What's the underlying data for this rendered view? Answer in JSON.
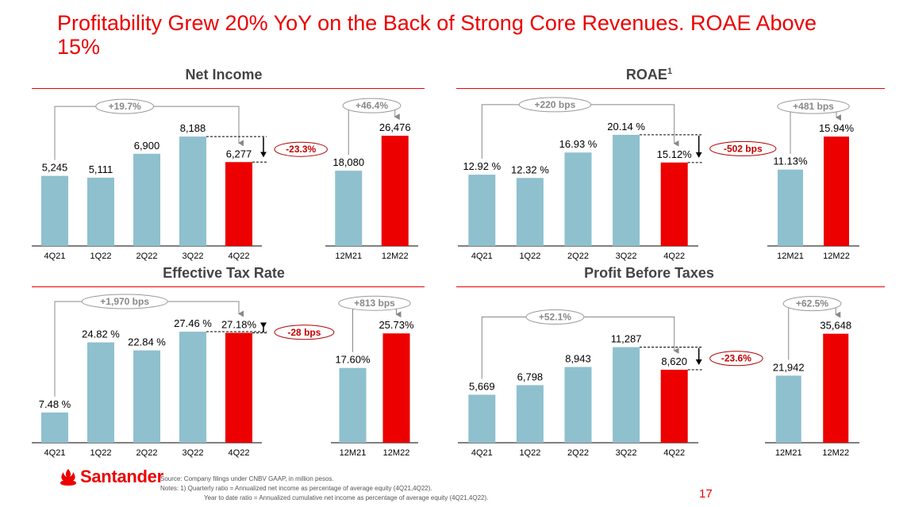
{
  "slide": {
    "title": "Profitability Grew 20% YoY on the Back of Strong Core Revenues. ROAE Above 15%",
    "page_number": "17",
    "brand": "Santander",
    "footnotes": {
      "source": "Source: Company filings under CNBV GAAP, in million pesos.",
      "note1": "Notes: 1) Quarterly ratio = Annualized net income as percentage of average equity (4Q21,4Q22).",
      "note2": "Year to date ratio = Annualized cumulative net income as percentage of average equity (4Q21,4Q22)."
    },
    "colors": {
      "accent": "#ec0000",
      "bar_prior": "#8fc0ce",
      "bar_current": "#ec0000",
      "title_gray": "#444444"
    }
  },
  "sections": [
    {
      "title": "Net Income",
      "superscript": ""
    },
    {
      "title": "ROAE",
      "superscript": "1"
    },
    {
      "title": "Effective Tax Rate",
      "superscript": ""
    },
    {
      "title": "Profit Before Taxes",
      "superscript": ""
    }
  ],
  "chart_data": [
    {
      "type": "bar",
      "title": "Net Income",
      "subtitle": "Quarterly",
      "categories": [
        "4Q21",
        "1Q22",
        "2Q22",
        "3Q22",
        "4Q22"
      ],
      "values": [
        5245,
        5111,
        6900,
        8188,
        6277
      ],
      "labels": [
        "5,245",
        "5,111",
        "6,900",
        "8,188",
        "6,277"
      ],
      "highlight_index": 4,
      "annotations": {
        "yoy": "+19.7%",
        "qoq": "-23.3%"
      },
      "ylim": [
        0,
        9500
      ]
    },
    {
      "type": "bar",
      "title": "Net Income",
      "subtitle": "Year to date",
      "categories": [
        "12M21",
        "12M22"
      ],
      "values": [
        18080,
        26476
      ],
      "labels": [
        "18,080",
        "26,476"
      ],
      "highlight_index": 1,
      "annotations": {
        "yoy": "+46.4%"
      },
      "ylim": [
        0,
        30500
      ]
    },
    {
      "type": "bar",
      "title": "ROAE",
      "subtitle": "Quarterly",
      "categories": [
        "4Q21",
        "1Q22",
        "2Q22",
        "3Q22",
        "4Q22"
      ],
      "values": [
        12.92,
        12.32,
        16.93,
        20.14,
        15.12
      ],
      "labels": [
        "12.92 %",
        "12.32 %",
        "16.93 %",
        "20.14 %",
        "15.12%"
      ],
      "highlight_index": 4,
      "annotations": {
        "yoy": "+220 bps",
        "qoq": "-502 bps"
      },
      "ylim": [
        0,
        23
      ]
    },
    {
      "type": "bar",
      "title": "ROAE",
      "subtitle": "Year to date",
      "categories": [
        "12M21",
        "12M22"
      ],
      "values": [
        11.13,
        15.94
      ],
      "labels": [
        "11.13%",
        "15.94%"
      ],
      "highlight_index": 1,
      "annotations": {
        "yoy": "+481 bps"
      },
      "ylim": [
        0,
        18.5
      ]
    },
    {
      "type": "bar",
      "title": "Effective Tax Rate",
      "subtitle": "Quarterly",
      "categories": [
        "4Q21",
        "1Q22",
        "2Q22",
        "3Q22",
        "4Q22"
      ],
      "values": [
        7.48,
        24.82,
        22.84,
        27.46,
        27.18
      ],
      "labels": [
        "7.48 %",
        "24.82 %",
        "22.84 %",
        "27.46 %",
        "27.18%"
      ],
      "highlight_index": 4,
      "annotations": {
        "yoy": "+1,970 bps",
        "qoq": "-28 bps"
      },
      "ylim": [
        0,
        31
      ]
    },
    {
      "type": "bar",
      "title": "Effective Tax Rate",
      "subtitle": "Year to date",
      "categories": [
        "12M21",
        "12M22"
      ],
      "values": [
        17.6,
        25.73
      ],
      "labels": [
        "17.60%",
        "25.73%"
      ],
      "highlight_index": 1,
      "annotations": {
        "yoy": "+813 bps"
      },
      "ylim": [
        0,
        29.5
      ]
    },
    {
      "type": "bar",
      "title": "Profit Before Taxes",
      "subtitle": "Quarterly",
      "categories": [
        "4Q21",
        "1Q22",
        "2Q22",
        "3Q22",
        "4Q22"
      ],
      "values": [
        5669,
        6798,
        8943,
        11287,
        8620
      ],
      "labels": [
        "5,669",
        "6,798",
        "8,943",
        "11,287",
        "8,620"
      ],
      "highlight_index": 4,
      "annotations": {
        "yoy": "+52.1%",
        "qoq": "-23.6%"
      },
      "ylim": [
        0,
        14800
      ]
    },
    {
      "type": "bar",
      "title": "Profit Before Taxes",
      "subtitle": "Year to date",
      "categories": [
        "12M21",
        "12M22"
      ],
      "values": [
        21942,
        35648
      ],
      "labels": [
        "21,942",
        "35,648"
      ],
      "highlight_index": 1,
      "annotations": {
        "yoy": "+62.5%"
      },
      "ylim": [
        0,
        41000
      ]
    }
  ]
}
